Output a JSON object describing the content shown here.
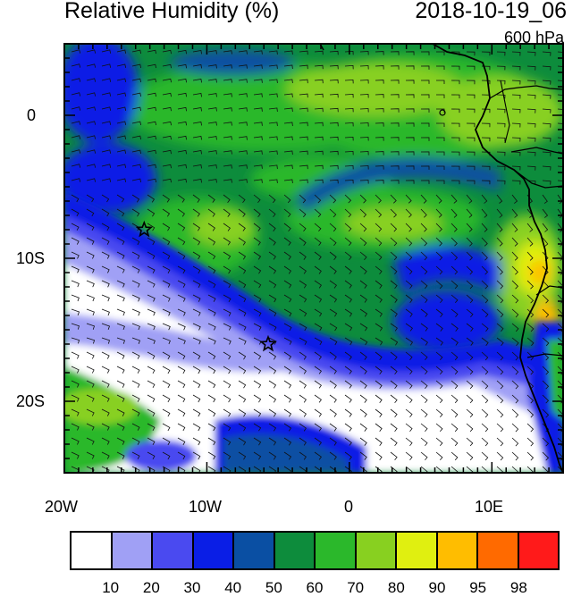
{
  "header": {
    "title": "Relative Humidity (%)",
    "datetime": "2018-10-19_06",
    "level": "600 hPa"
  },
  "axes": {
    "x_labels": [
      "20W",
      "10W",
      "0",
      "10E"
    ],
    "y_labels": [
      "0",
      "10S",
      "20S"
    ],
    "lon_range": [
      -20,
      15
    ],
    "lat_range": [
      -25,
      5
    ]
  },
  "legend": {
    "labels": [
      "10",
      "20",
      "30",
      "40",
      "50",
      "60",
      "70",
      "80",
      "90",
      "95",
      "98"
    ],
    "colors": [
      "#ffffff",
      "#a0a0f5",
      "#4a4af0",
      "#0a1ee6",
      "#0a4fa3",
      "#0d8c3c",
      "#2bb82b",
      "#88d020",
      "#e0ef10",
      "#ffbd00",
      "#ff6a00",
      "#ff1a1a"
    ]
  },
  "markers": [
    {
      "name": "star",
      "lon": -14.4,
      "lat": -8.0
    },
    {
      "name": "star",
      "lon": -5.7,
      "lat": -16.0
    }
  ],
  "icons": {
    "marker": "star-icon",
    "wind": "wind-barb-icon"
  }
}
